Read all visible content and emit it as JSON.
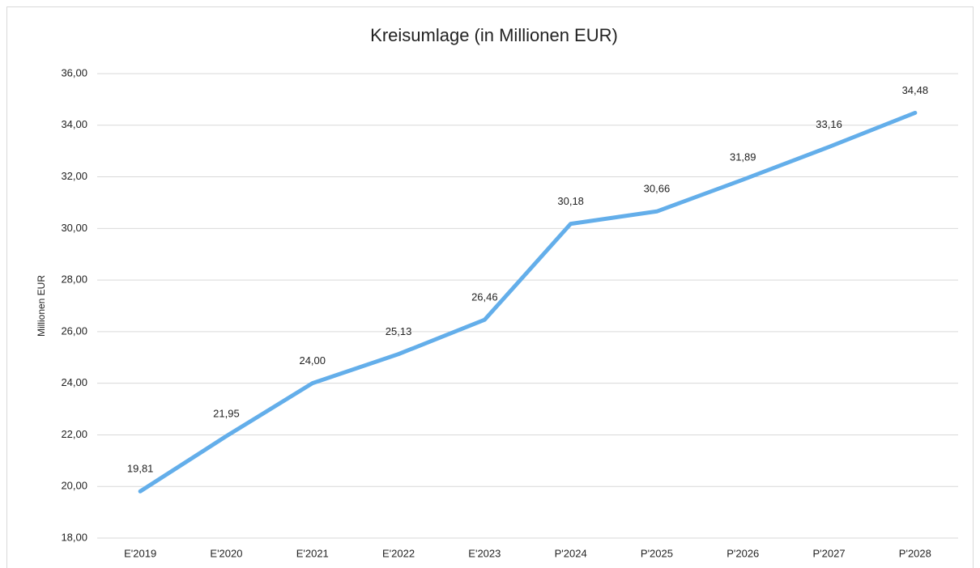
{
  "chart_data": {
    "type": "line",
    "title": "Kreisumlage (in Millionen EUR)",
    "ylabel": "Millionen EUR",
    "categories": [
      "E'2019",
      "E'2020",
      "E'2021",
      "E'2022",
      "E'2023",
      "P'2024",
      "P'2025",
      "P'2026",
      "P'2027",
      "P'2028"
    ],
    "series": [
      {
        "name": "Kreisumlage",
        "color": "#63aeea",
        "values": [
          19.81,
          21.95,
          24.0,
          25.13,
          26.46,
          30.18,
          30.66,
          31.89,
          33.16,
          34.48
        ],
        "value_labels": [
          "19,81",
          "21,95",
          "24,00",
          "25,13",
          "26,46",
          "30,18",
          "30,66",
          "31,89",
          "33,16",
          "34,48"
        ]
      }
    ],
    "ylim": [
      18,
      36
    ],
    "yticks": [
      {
        "value": 18,
        "label": "18,00"
      },
      {
        "value": 20,
        "label": "20,00"
      },
      {
        "value": 22,
        "label": "22,00"
      },
      {
        "value": 24,
        "label": "24,00"
      },
      {
        "value": 26,
        "label": "26,00"
      },
      {
        "value": 28,
        "label": "28,00"
      },
      {
        "value": 30,
        "label": "30,00"
      },
      {
        "value": 32,
        "label": "32,00"
      },
      {
        "value": 34,
        "label": "34,00"
      },
      {
        "value": 36,
        "label": "36,00"
      }
    ],
    "grid": true
  }
}
